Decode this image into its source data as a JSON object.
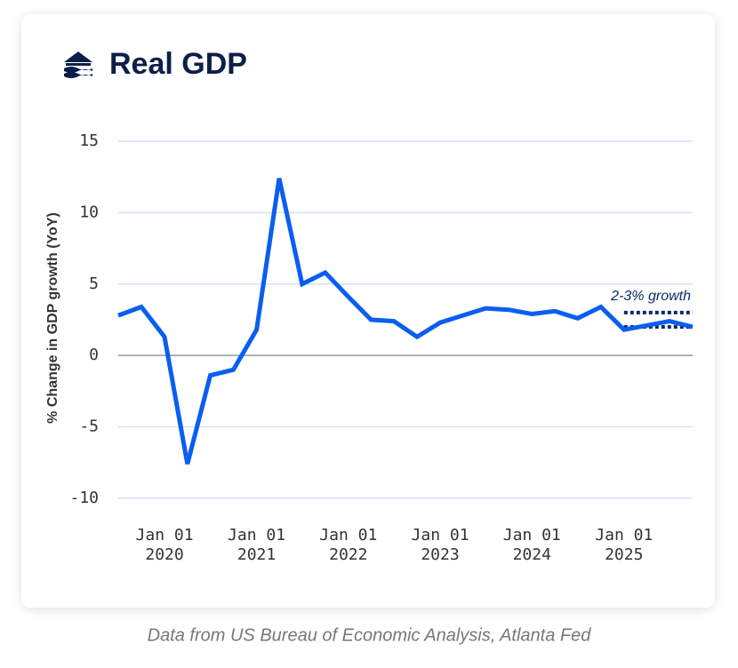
{
  "chart_data": {
    "type": "line",
    "title": "Real GDP",
    "y_label": "% Change in GDP growth (YoY)",
    "source": "Data from US Bureau of Economic Analysis, Atlanta Fed",
    "x": [
      "2019-07-01",
      "2019-10-01",
      "2020-01-01",
      "2020-04-01",
      "2020-07-01",
      "2020-10-01",
      "2021-01-01",
      "2021-04-01",
      "2021-07-01",
      "2021-10-01",
      "2022-01-01",
      "2022-04-01",
      "2022-07-01",
      "2022-10-01",
      "2023-01-01",
      "2023-04-01",
      "2023-07-01",
      "2023-10-01",
      "2024-01-01",
      "2024-04-01",
      "2024-07-01",
      "2024-10-01",
      "2025-01-01",
      "2025-04-01",
      "2025-07-01",
      "2025-10-01"
    ],
    "values": [
      2.8,
      3.4,
      1.3,
      -7.6,
      -1.4,
      -1.0,
      1.8,
      12.4,
      5.0,
      5.8,
      4.1,
      2.5,
      2.4,
      1.3,
      2.3,
      2.8,
      3.3,
      3.2,
      2.9,
      3.1,
      2.6,
      3.4,
      1.8,
      2.1,
      2.4,
      2.0
    ],
    "color": "#0a5ef0",
    "xlim": [
      "2019-07-01",
      "2025-10-01"
    ],
    "xticks": [
      {
        "value": "2020-01-01",
        "label": [
          "Jan 01",
          "2020"
        ]
      },
      {
        "value": "2021-01-01",
        "label": [
          "Jan 01",
          "2021"
        ]
      },
      {
        "value": "2022-01-01",
        "label": [
          "Jan 01",
          "2022"
        ]
      },
      {
        "value": "2023-01-01",
        "label": [
          "Jan 01",
          "2023"
        ]
      },
      {
        "value": "2024-01-01",
        "label": [
          "Jan 01",
          "2024"
        ]
      },
      {
        "value": "2025-01-01",
        "label": [
          "Jan 01",
          "2025"
        ]
      }
    ],
    "ylim": [
      -11.5,
      15
    ],
    "yticks": [
      -10,
      -5,
      0,
      5,
      10,
      15
    ],
    "grid": true,
    "target": {
      "label": "2-3% growth",
      "values": [
        2,
        3
      ],
      "start": "2025-01-01",
      "color": "#0b2a66"
    }
  }
}
